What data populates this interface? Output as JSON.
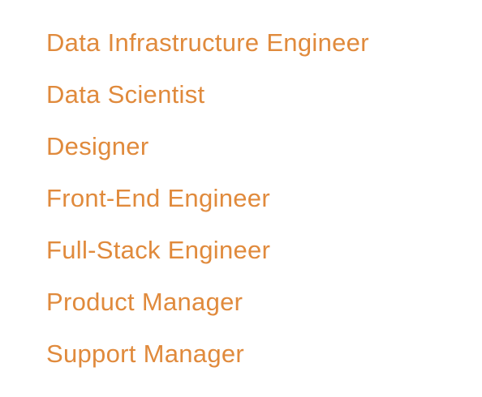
{
  "theme": {
    "link_color": "#e08a3c"
  },
  "jobs": {
    "items": [
      {
        "label": "Data Infrastructure Engineer"
      },
      {
        "label": "Data Scientist"
      },
      {
        "label": "Designer"
      },
      {
        "label": "Front-End Engineer"
      },
      {
        "label": "Full-Stack Engineer"
      },
      {
        "label": "Product Manager"
      },
      {
        "label": "Support Manager"
      }
    ]
  }
}
